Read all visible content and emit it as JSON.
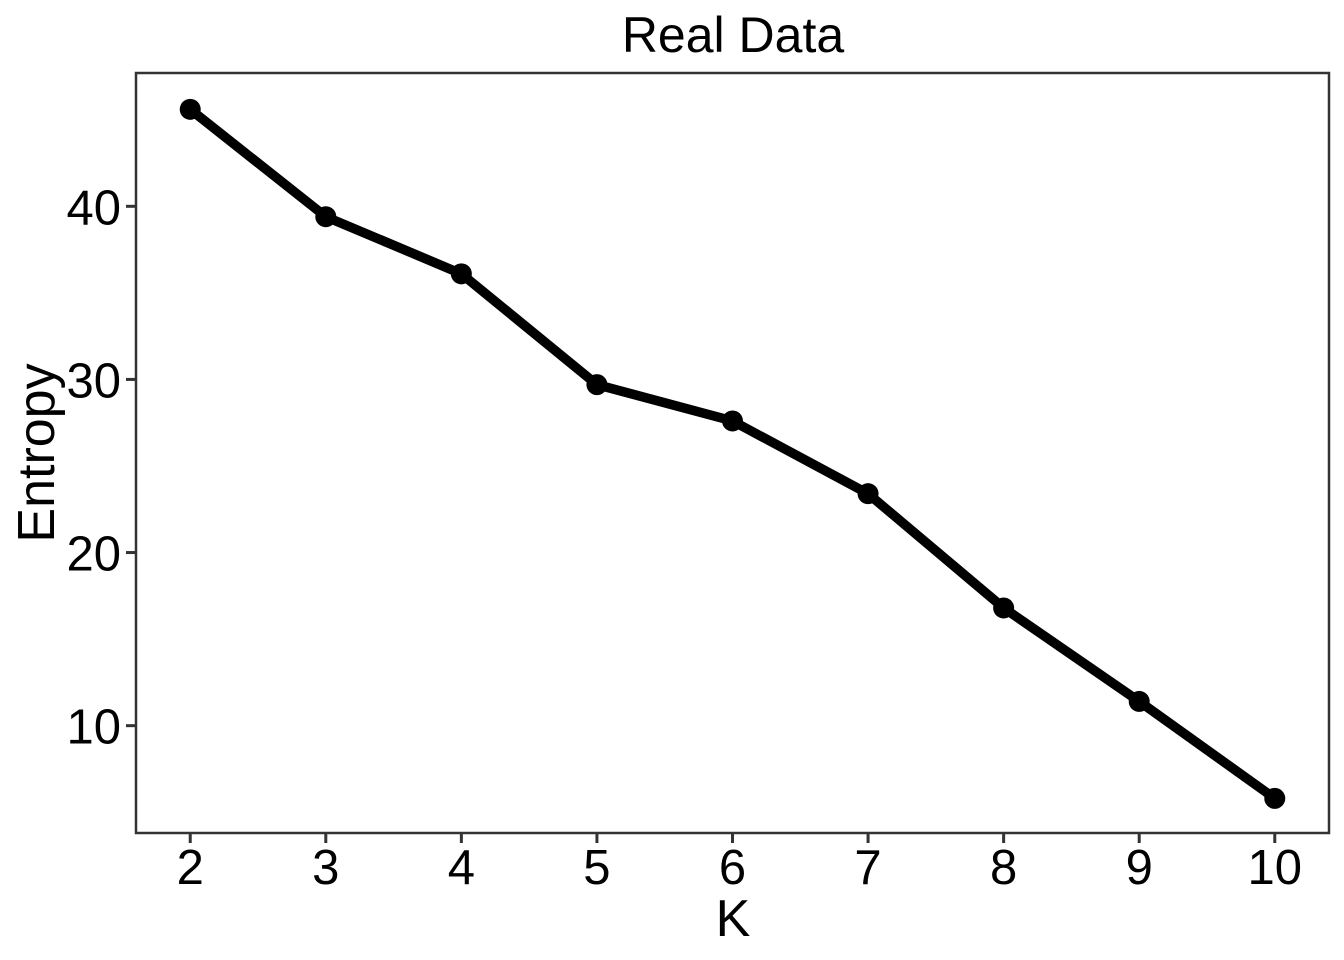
{
  "figure": {
    "background_color": "#ffffff"
  },
  "chart_data": {
    "type": "line",
    "title": "Real Data",
    "xlabel": "K",
    "ylabel": "Entropy",
    "x": [
      2,
      3,
      4,
      5,
      6,
      7,
      8,
      9,
      10
    ],
    "y": [
      45.6,
      39.4,
      36.1,
      29.7,
      27.6,
      23.4,
      16.8,
      11.4,
      5.8
    ],
    "series_name": "Entropy",
    "x_tick_labels": [
      "2",
      "3",
      "4",
      "5",
      "6",
      "7",
      "8",
      "9",
      "10"
    ],
    "y_tick_labels": [
      "10",
      "20",
      "30",
      "40"
    ],
    "x_ticks": [
      2,
      3,
      4,
      5,
      6,
      7,
      8,
      9,
      10
    ],
    "y_ticks": [
      10,
      20,
      30,
      40
    ],
    "xlim": [
      1.6,
      10.4
    ],
    "ylim": [
      3.8,
      47.7
    ],
    "grid": false,
    "legend": false,
    "line_color": "#000000",
    "line_width": 9.5,
    "marker": "circle",
    "marker_radius": 10.5,
    "marker_color": "#000000",
    "panel_border_color": "#333333",
    "tick_color": "#333333",
    "text_color": "#000000"
  }
}
